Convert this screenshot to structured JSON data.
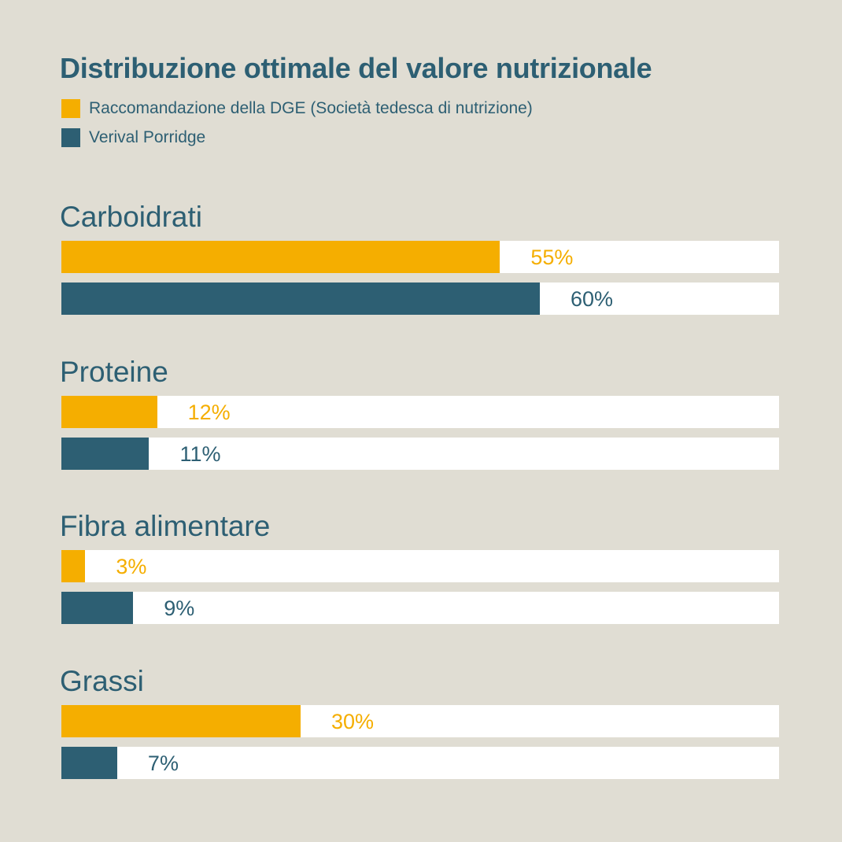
{
  "chart_data": {
    "type": "bar",
    "orientation": "horizontal",
    "title": "Distribuzione ottimale del valore nutrizionale",
    "categories": [
      "Carboidrati",
      "Proteine",
      "Fibra alimentare",
      "Grassi"
    ],
    "series": [
      {
        "name": "Raccomandazione della DGE (Società tedesca di nutrizione)",
        "values": [
          55,
          12,
          3,
          30
        ],
        "labels": [
          "55%",
          "12%",
          "3%",
          "30%"
        ],
        "color": "#f5ae00"
      },
      {
        "name": "Verival Porridge",
        "values": [
          60,
          11,
          9,
          7
        ],
        "labels": [
          "60%",
          "11%",
          "9%",
          "7%"
        ],
        "color": "#2d5f73"
      }
    ],
    "xlim": [
      0,
      90
    ],
    "grid": false,
    "legend": "top-left"
  },
  "colors": {
    "background": "#e0ddd3",
    "track": "#ffffff",
    "text": "#2d5f73"
  }
}
